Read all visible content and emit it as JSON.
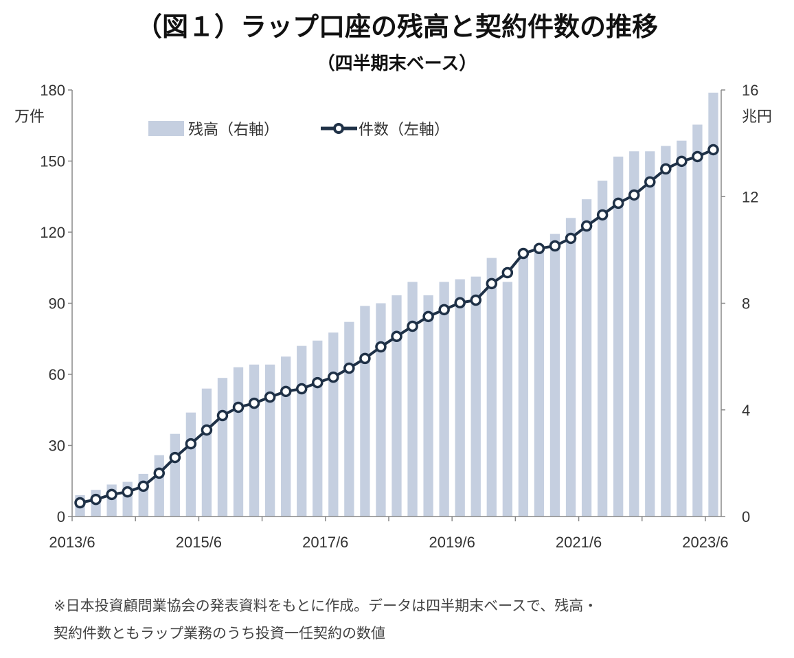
{
  "chart_data": {
    "type": "bar+line",
    "title": "（図１）ラップ口座の残高と契約件数の推移",
    "subtitle": "（四半期末ベース）",
    "left_axis": {
      "unit": "万件",
      "range": [
        0,
        180
      ],
      "ticks": [
        "0",
        "30",
        "60",
        "90",
        "120",
        "150",
        "180"
      ]
    },
    "right_axis": {
      "unit": "兆円",
      "range": [
        0,
        16
      ],
      "ticks": [
        "0",
        "4",
        "8",
        "12",
        "16"
      ]
    },
    "x_tick_labels": [
      "2013/6",
      "2015/6",
      "2017/6",
      "2019/6",
      "2021/6",
      "2023/6"
    ],
    "categories": [
      "2013/6",
      "2013/9",
      "2013/12",
      "2014/3",
      "2014/6",
      "2014/9",
      "2014/12",
      "2015/3",
      "2015/6",
      "2015/9",
      "2015/12",
      "2016/3",
      "2016/6",
      "2016/9",
      "2016/12",
      "2017/3",
      "2017/6",
      "2017/9",
      "2017/12",
      "2018/3",
      "2018/6",
      "2018/9",
      "2018/12",
      "2019/3",
      "2019/6",
      "2019/9",
      "2019/12",
      "2020/3",
      "2020/6",
      "2020/9",
      "2020/12",
      "2021/3",
      "2021/6",
      "2021/9",
      "2021/12",
      "2022/3",
      "2022/6",
      "2022/9",
      "2022/12",
      "2023/3",
      "2023/6"
    ],
    "legend_position": "top-left",
    "grid": false,
    "series": [
      {
        "name": "残高（右軸）",
        "type": "bar",
        "axis": "right",
        "color": "#c5cfe0",
        "values": [
          0.8,
          1.0,
          1.2,
          1.3,
          1.6,
          2.3,
          3.1,
          3.9,
          4.8,
          5.2,
          5.6,
          5.7,
          5.7,
          6.0,
          6.4,
          6.6,
          6.9,
          7.3,
          7.9,
          8.0,
          8.3,
          8.8,
          8.3,
          8.8,
          8.9,
          9.0,
          9.7,
          8.8,
          9.9,
          10.0,
          10.6,
          11.2,
          11.9,
          12.6,
          13.5,
          13.7,
          13.7,
          13.9,
          14.1,
          14.7,
          15.9
        ]
      },
      {
        "name": "件数（左軸）",
        "type": "line",
        "axis": "left",
        "color": "#1f3147",
        "values": [
          5.8,
          7.2,
          9.3,
          10.4,
          12.8,
          18.3,
          24.9,
          30.7,
          36.5,
          42.6,
          46.1,
          47.8,
          50.4,
          52.8,
          53.9,
          56.5,
          58.8,
          62.6,
          66.7,
          71.6,
          76.0,
          80.3,
          84.4,
          87.3,
          90.2,
          91.3,
          98.3,
          102.9,
          111.0,
          113.1,
          114.2,
          117.4,
          122.6,
          127.3,
          132.2,
          135.7,
          141.2,
          146.7,
          149.9,
          151.9,
          154.8
        ]
      }
    ]
  },
  "footnote": {
    "line1": "※日本投資顧問業協会の発表資料をもとに作成。データは四半期末ベースで、残高・",
    "line2": "契約件数ともラップ業務のうち投資一任契約の数値"
  }
}
